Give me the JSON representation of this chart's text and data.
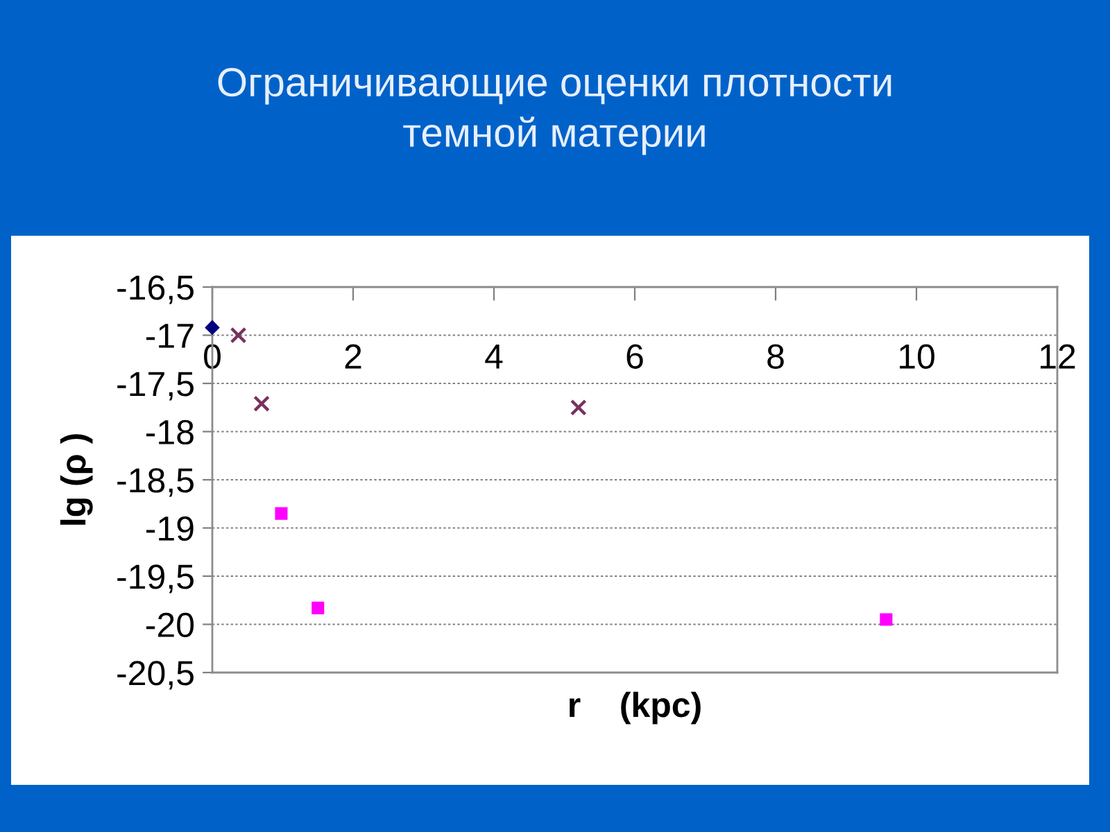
{
  "chart_data": {
    "type": "scatter",
    "title": "Ограничивающие оценки плотности\nтемной материи",
    "xlabel": "r    (kpc)",
    "ylabel": "lg (ρ )",
    "xlim": [
      0,
      12
    ],
    "xticks": [
      0,
      2,
      4,
      6,
      8,
      10,
      12
    ],
    "ylim": [
      -20.5,
      -16.5
    ],
    "yticks": [
      {
        "value": -20.5,
        "label": "-20,5"
      },
      {
        "value": -20,
        "label": "-20"
      },
      {
        "value": -19.5,
        "label": "-19,5"
      },
      {
        "value": -19,
        "label": "-19"
      },
      {
        "value": -18.5,
        "label": "-18,5"
      },
      {
        "value": -18,
        "label": "-18"
      },
      {
        "value": -17.5,
        "label": "-17,5"
      },
      {
        "value": -17,
        "label": "-17"
      },
      {
        "value": -16.5,
        "label": "-16,5"
      }
    ],
    "grid": "y",
    "series": [
      {
        "color": "#000080",
        "marker": "diamond",
        "x": [
          0
        ],
        "values": [
          -16.92
        ]
      },
      {
        "color": "#7a3060",
        "marker": "cross",
        "x": [
          0.37,
          0.7,
          5.2
        ],
        "values": [
          -17.0,
          -17.71,
          -17.75
        ]
      },
      {
        "color": "#ff00ff",
        "marker": "square",
        "x": [
          0.98,
          1.5,
          9.57
        ],
        "values": [
          -18.85,
          -19.83,
          -19.95
        ]
      }
    ]
  }
}
